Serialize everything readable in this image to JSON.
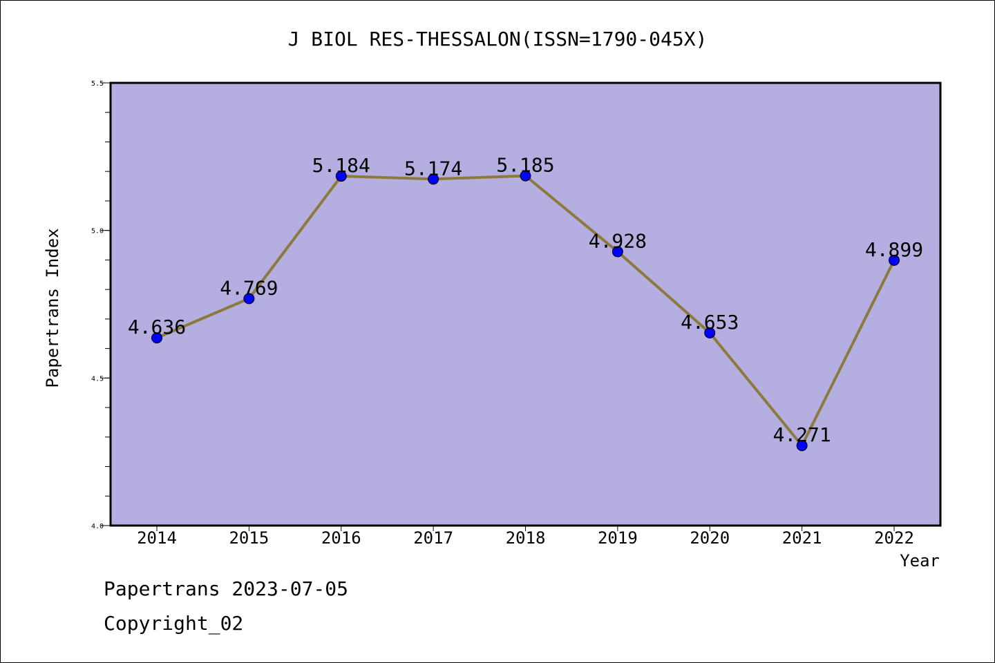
{
  "chart_data": {
    "type": "line",
    "title": "J BIOL RES-THESSALON(ISSN=1790-045X)",
    "xlabel": "Year",
    "ylabel": "Papertrans Index",
    "x": [
      2014,
      2015,
      2016,
      2017,
      2018,
      2019,
      2020,
      2021,
      2022
    ],
    "x_tick_labels": [
      "2014",
      "2015",
      "2016",
      "2017",
      "2018",
      "2019",
      "2020",
      "2021",
      "2022"
    ],
    "y_tick_labels": [
      "4.0",
      "4.5",
      "5.0",
      "5.5"
    ],
    "ylim": [
      4.0,
      5.5
    ],
    "series": [
      {
        "values": [
          4.636,
          4.769,
          5.184,
          5.174,
          5.185,
          4.928,
          4.653,
          4.271,
          4.899
        ],
        "data_labels": [
          "4.636",
          "4.769",
          "5.184",
          "5.174",
          "5.185",
          "4.928",
          "4.653",
          "4.271",
          "4.899"
        ]
      }
    ],
    "grid": false,
    "colors": {
      "plot_background": "#b5afe1",
      "line": "#8c7a3c",
      "marker": "#0000ff"
    }
  },
  "footer": {
    "line1": "Papertrans 2023-07-05",
    "line2": "Copyright_02"
  }
}
